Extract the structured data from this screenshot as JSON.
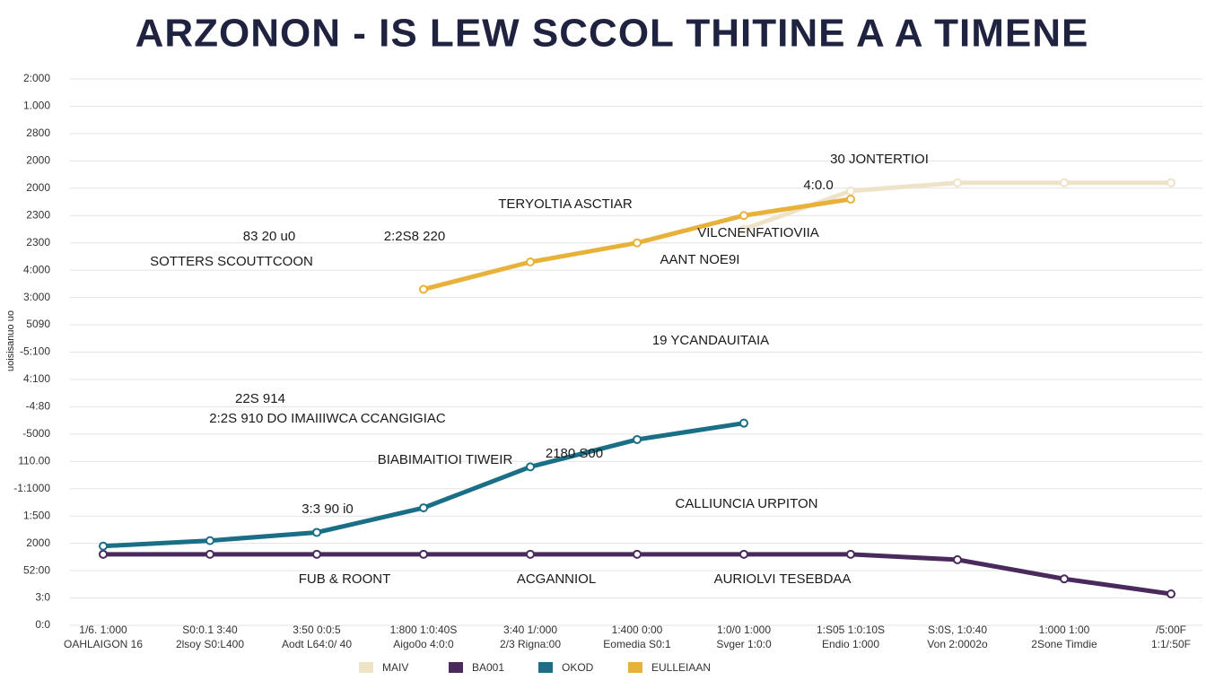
{
  "chart_data": {
    "type": "line",
    "title": "ARZONON - IS LEW  SCCOL THITINE A A TIMENE",
    "ylabel": "uoisisanuo uo",
    "categories": [
      "OAHLAIGON 16",
      "2lsoy S0:L400",
      "Aodt L64:0/ 40",
      "Aigo0o 4:0:0",
      "2/3 Rigna:00",
      "Eomedia S0:1",
      "Svger 1:0:0",
      "Endio 1:000",
      "Von 2:0002o",
      "2Sone Timdie",
      "1:1/:50F"
    ],
    "category_toplabels": [
      "1/6. 1:000",
      "S0:0.1 3:40",
      "3:50 0:0:5",
      "1:800 1:0:40S",
      "3:40 1/:000",
      "1:400 0:00",
      "1:0/0 1:000",
      "1:S05 1:0:10S",
      "S:0S, 1:0:40",
      "1:000 1:00",
      "/5:00F"
    ],
    "ylim": [
      0,
      20
    ],
    "yticks": [
      {
        "value": 0,
        "label": "0:0"
      },
      {
        "value": 1,
        "label": "3:0"
      },
      {
        "value": 2,
        "label": "52:00"
      },
      {
        "value": 3,
        "label": "2000"
      },
      {
        "value": 4,
        "label": "1:500"
      },
      {
        "value": 5,
        "label": "-1:1000"
      },
      {
        "value": 6,
        "label": "110.00"
      },
      {
        "value": 7,
        "label": "-5000"
      },
      {
        "value": 8,
        "label": "-4:80"
      },
      {
        "value": 9,
        "label": "4:100"
      },
      {
        "value": 10,
        "label": "-5:100"
      },
      {
        "value": 11,
        "label": "5090"
      },
      {
        "value": 12,
        "label": "3:000"
      },
      {
        "value": 13,
        "label": "4:000"
      },
      {
        "value": 14,
        "label": "2300"
      },
      {
        "value": 15,
        "label": "2300"
      },
      {
        "value": 16,
        "label": "2000"
      },
      {
        "value": 17,
        "label": "2000"
      },
      {
        "value": 18,
        "label": "2800"
      },
      {
        "value": 19,
        "label": "1.000"
      },
      {
        "value": 20,
        "label": "2:000"
      }
    ],
    "grid": true,
    "series": [
      {
        "name": "MAIV",
        "color": "#eee3c6",
        "values": [
          null,
          null,
          null,
          null,
          null,
          null,
          14.5,
          15.9,
          16.2,
          16.2,
          16.2
        ]
      },
      {
        "name": "BA001",
        "color": "#4a2a5c",
        "values": [
          2.6,
          2.6,
          2.6,
          2.6,
          2.6,
          2.6,
          2.6,
          2.6,
          2.4,
          1.7,
          1.15
        ]
      },
      {
        "name": "OKOD",
        "color": "#1a6e86",
        "values": [
          2.9,
          3.1,
          3.4,
          4.3,
          5.8,
          6.8,
          7.4,
          null,
          null,
          null,
          null
        ]
      },
      {
        "name": "EULLEIAAN",
        "color": "#e8b23a",
        "values": [
          null,
          null,
          null,
          12.3,
          13.3,
          14.0,
          15.0,
          15.6,
          null,
          null,
          null
        ]
      }
    ],
    "annotations": [
      "30 JONTERTIOI",
      "4:0.0",
      "TERYOLTIA ASCTIAR",
      "VILCNENFATIOVIIA",
      "AANT NOE9I",
      "83 20 u0",
      "2:2S8 220",
      "SOTTERS SCOUTTCOON",
      "19 YCANDAUITAIA",
      "22S 914",
      "2:2S 910 DO IMAIIIWCA CCANGIGIAC",
      "2180 S00",
      "BIABIMAITIOI TIWEIR",
      "3:3 90 i0",
      "CALLIUNCIA URPITON",
      "FUB & ROONT",
      "ACGANNIOL",
      "AURIOLVI TESEBDAA"
    ]
  }
}
